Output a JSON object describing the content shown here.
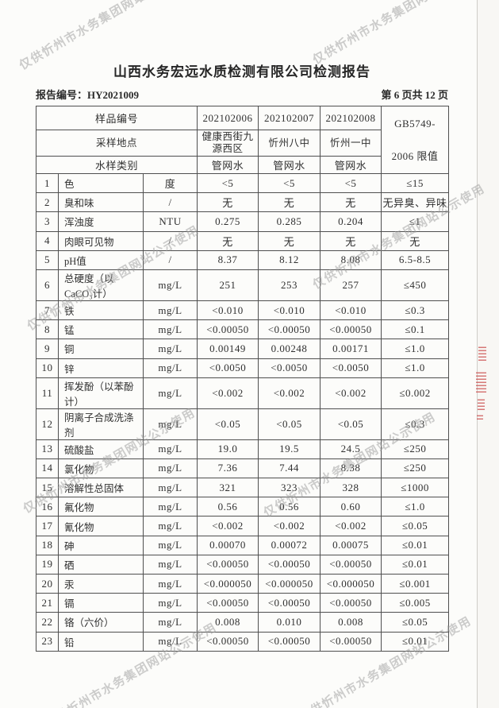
{
  "page": {
    "title": "山西水务宏远水质检测有限公司检测报告",
    "report_no": "报告编号：HY2021009",
    "page_info": "第 6 页共 12 页"
  },
  "watermark": {
    "text": "仅供忻州市水务集团网站公示使用",
    "color": "#9c9c9c"
  },
  "stamp": {
    "color": "#c63c3c"
  },
  "table": {
    "header": {
      "sample_id_label": "样品编号",
      "sample_ids": [
        "202102006",
        "202102007",
        "202102008"
      ],
      "location_label": "采样地点",
      "locations": [
        "健康西街九源西区",
        "忻州八中",
        "忻州一中"
      ],
      "type_label": "水样类别",
      "types": [
        "管网水",
        "管网水",
        "管网水"
      ],
      "limit_line1": "GB5749-",
      "limit_line2": "2006 限值"
    },
    "rows": [
      {
        "no": "1",
        "name": "色",
        "unit": "度",
        "values": [
          "<5",
          "<5",
          "<5"
        ],
        "limit": "≤15"
      },
      {
        "no": "2",
        "name": "臭和味",
        "unit": "/",
        "values": [
          "无",
          "无",
          "无"
        ],
        "limit": "无异臭、异味"
      },
      {
        "no": "3",
        "name": "浑浊度",
        "unit": "NTU",
        "values": [
          "0.275",
          "0.285",
          "0.204"
        ],
        "limit": "≤1"
      },
      {
        "no": "4",
        "name": "肉眼可见物",
        "unit": "/",
        "values": [
          "无",
          "无",
          "无"
        ],
        "limit": "无"
      },
      {
        "no": "5",
        "name": "pH值",
        "unit": "/",
        "values": [
          "8.37",
          "8.12",
          "8.08"
        ],
        "limit": "6.5-8.5"
      },
      {
        "no": "6",
        "name": "总硬度（以CaCO₃计）",
        "unit": "mg/L",
        "values": [
          "251",
          "253",
          "257"
        ],
        "limit": "≤450"
      },
      {
        "no": "7",
        "name": "铁",
        "unit": "mg/L",
        "values": [
          "<0.010",
          "<0.010",
          "<0.010"
        ],
        "limit": "≤0.3"
      },
      {
        "no": "8",
        "name": "锰",
        "unit": "mg/L",
        "values": [
          "<0.00050",
          "<0.00050",
          "<0.00050"
        ],
        "limit": "≤0.1"
      },
      {
        "no": "9",
        "name": "铜",
        "unit": "mg/L",
        "values": [
          "0.00149",
          "0.00248",
          "0.00171"
        ],
        "limit": "≤1.0"
      },
      {
        "no": "10",
        "name": "锌",
        "unit": "mg/L",
        "values": [
          "<0.0050",
          "<0.0050",
          "<0.0050"
        ],
        "limit": "≤1.0"
      },
      {
        "no": "11",
        "name": "挥发酚（以苯酚计）",
        "unit": "mg/L",
        "values": [
          "<0.002",
          "<0.002",
          "<0.002"
        ],
        "limit": "≤0.002"
      },
      {
        "no": "12",
        "name": "阴离子合成洗涤剂",
        "unit": "mg/L",
        "values": [
          "<0.05",
          "<0.05",
          "<0.05"
        ],
        "limit": "≤0.3"
      },
      {
        "no": "13",
        "name": "硫酸盐",
        "unit": "mg/L",
        "values": [
          "19.0",
          "19.5",
          "24.5"
        ],
        "limit": "≤250"
      },
      {
        "no": "14",
        "name": "氯化物",
        "unit": "mg/L",
        "values": [
          "7.36",
          "7.44",
          "8.38"
        ],
        "limit": "≤250"
      },
      {
        "no": "15",
        "name": "溶解性总固体",
        "unit": "mg/L",
        "values": [
          "321",
          "323",
          "328"
        ],
        "limit": "≤1000"
      },
      {
        "no": "16",
        "name": "氟化物",
        "unit": "mg/L",
        "values": [
          "0.56",
          "0.56",
          "0.60"
        ],
        "limit": "≤1.0"
      },
      {
        "no": "17",
        "name": "氰化物",
        "unit": "mg/L",
        "values": [
          "<0.002",
          "<0.002",
          "<0.002"
        ],
        "limit": "≤0.05"
      },
      {
        "no": "18",
        "name": "砷",
        "unit": "mg/L",
        "values": [
          "0.00070",
          "0.00072",
          "0.00075"
        ],
        "limit": "≤0.01"
      },
      {
        "no": "19",
        "name": "硒",
        "unit": "mg/L",
        "values": [
          "<0.00050",
          "<0.00050",
          "<0.00050"
        ],
        "limit": "≤0.01"
      },
      {
        "no": "20",
        "name": "汞",
        "unit": "mg/L",
        "values": [
          "<0.000050",
          "<0.000050",
          "<0.000050"
        ],
        "limit": "≤0.001"
      },
      {
        "no": "21",
        "name": "镉",
        "unit": "mg/L",
        "values": [
          "<0.00050",
          "<0.00050",
          "<0.00050"
        ],
        "limit": "≤0.005"
      },
      {
        "no": "22",
        "name": "铬（六价）",
        "unit": "mg/L",
        "values": [
          "0.008",
          "0.010",
          "0.008"
        ],
        "limit": "≤0.05"
      },
      {
        "no": "23",
        "name": "铅",
        "unit": "mg/L",
        "values": [
          "<0.00050",
          "<0.00050",
          "<0.00050"
        ],
        "limit": "≤0.01"
      }
    ]
  }
}
